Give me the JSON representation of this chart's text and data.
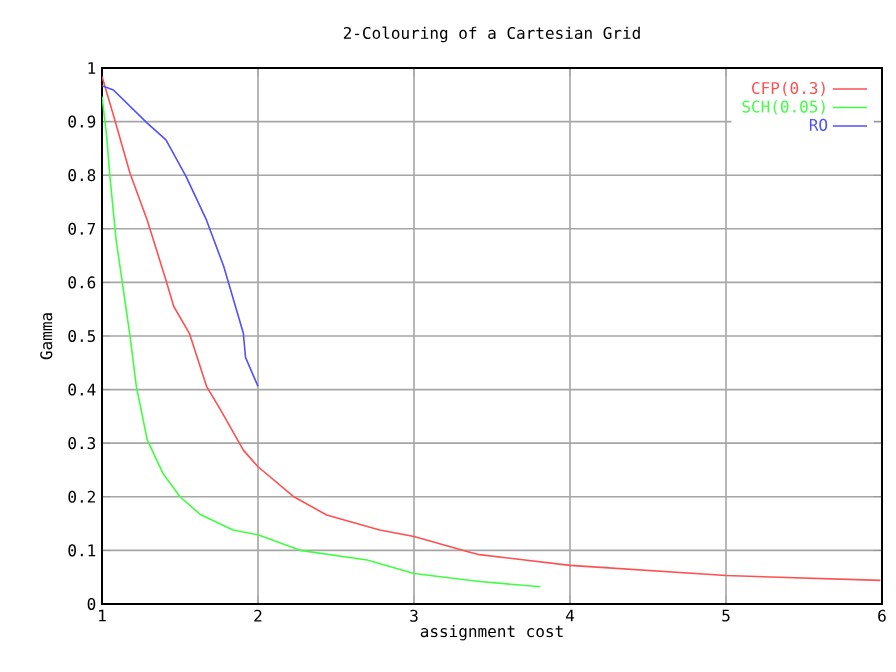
{
  "chart_data": {
    "type": "line",
    "title": "2-Colouring of a Cartesian Grid",
    "xlabel": "assignment cost",
    "ylabel": "Gamma",
    "xlim": [
      1,
      6
    ],
    "ylim": [
      0,
      1
    ],
    "xticks": [
      1,
      2,
      3,
      4,
      5,
      6
    ],
    "yticks": [
      0,
      0.1,
      0.2,
      0.3,
      0.4,
      0.5,
      0.6,
      0.7,
      0.8,
      0.9,
      1
    ],
    "grid": true,
    "legend": "top right",
    "marker": "none",
    "line_style": "solid",
    "series": [
      {
        "name": "CFP(0.3)",
        "color": "#ff5050",
        "x": [
          1.0,
          1.07,
          1.18,
          1.29,
          1.41,
          1.46,
          1.56,
          1.67,
          1.76,
          1.906,
          2.0,
          2.23,
          2.44,
          2.78,
          3.0,
          3.34,
          3.42,
          4.0,
          5.0,
          5.99
        ],
        "values": [
          0.984,
          0.915,
          0.803,
          0.716,
          0.604,
          0.555,
          0.505,
          0.406,
          0.362,
          0.287,
          0.256,
          0.2,
          0.166,
          0.138,
          0.126,
          0.098,
          0.092,
          0.072,
          0.053,
          0.044
        ]
      },
      {
        "name": "SCH(0.05)",
        "color": "#40ff40",
        "x": [
          1.0,
          1.03,
          1.05,
          1.09,
          1.14,
          1.18,
          1.22,
          1.29,
          1.39,
          1.5,
          1.63,
          1.84,
          2.0,
          2.27,
          2.7,
          3.0,
          3.42,
          3.81
        ],
        "values": [
          0.947,
          0.872,
          0.8,
          0.68,
          0.58,
          0.499,
          0.406,
          0.306,
          0.244,
          0.2,
          0.167,
          0.138,
          0.129,
          0.1,
          0.082,
          0.057,
          0.042,
          0.032
        ]
      },
      {
        "name": "RO",
        "color": "#5050ff",
        "x": [
          1.0,
          1.073,
          1.29,
          1.41,
          1.54,
          1.67,
          1.78,
          1.906,
          1.92,
          2.0
        ],
        "values": [
          0.967,
          0.959,
          0.897,
          0.866,
          0.797,
          0.716,
          0.63,
          0.505,
          0.46,
          0.406
        ]
      }
    ]
  }
}
